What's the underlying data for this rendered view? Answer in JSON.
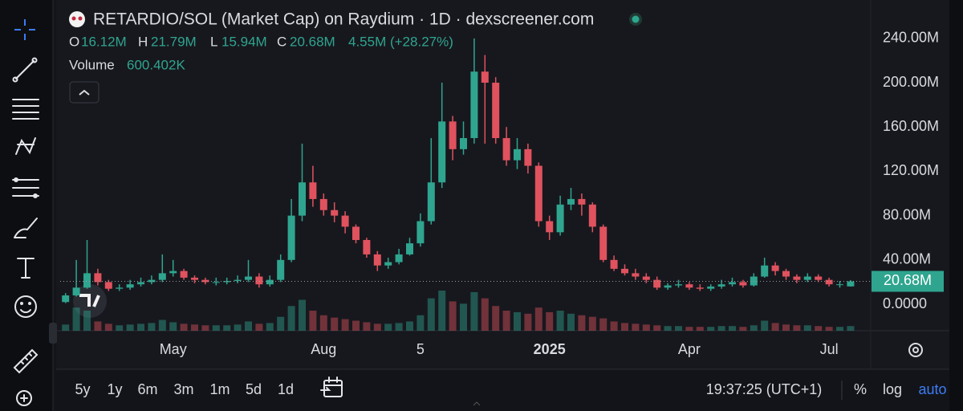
{
  "chart_data": {
    "type": "candlestick",
    "title": "RETARDIO/SOL (Market Cap) on Raydium · 1D · dexscreener.com",
    "legend": {
      "labels": [
        "O",
        "H",
        "L",
        "C"
      ],
      "values": [
        "16.12M",
        "21.79M",
        "15.94M",
        "20.68M"
      ],
      "change": "4.55M (+28.27%)"
    },
    "last_price_label": "20.68M",
    "categories": [
      null,
      null,
      null,
      null,
      null,
      null,
      null,
      null,
      null,
      null,
      "May",
      null,
      null,
      null,
      null,
      null,
      null,
      null,
      null,
      null,
      null,
      null,
      null,
      null,
      "Aug",
      null,
      null,
      null,
      null,
      null,
      null,
      null,
      null,
      "5",
      null,
      null,
      null,
      null,
      null,
      null,
      null,
      null,
      null,
      null,
      null,
      "2025",
      null,
      null,
      null,
      null,
      null,
      null,
      null,
      null,
      null,
      null,
      null,
      null,
      "Apr",
      null,
      null,
      null,
      null,
      null,
      null,
      null,
      null,
      null,
      null,
      null,
      null,
      "Jul",
      null,
      null
    ],
    "open": [
      2,
      8,
      15,
      28,
      20,
      14,
      15,
      18,
      20,
      22,
      28,
      30,
      24,
      22,
      20,
      20,
      21,
      22,
      25,
      18,
      22,
      40,
      80,
      110,
      95,
      85,
      80,
      70,
      58,
      45,
      35,
      38,
      45,
      55,
      75,
      110,
      165,
      140,
      150,
      210,
      200,
      150,
      130,
      140,
      125,
      75,
      65,
      90,
      95,
      90,
      70,
      40,
      32,
      28,
      25,
      22,
      15,
      17,
      18,
      15,
      14,
      16,
      18,
      20,
      17,
      25,
      35,
      30,
      25,
      22,
      25,
      22,
      18,
      16.12
    ],
    "high": [
      10,
      40,
      58,
      32,
      22,
      18,
      22,
      24,
      26,
      45,
      40,
      32,
      26,
      24,
      24,
      24,
      26,
      40,
      28,
      26,
      45,
      95,
      145,
      125,
      100,
      92,
      84,
      72,
      60,
      48,
      42,
      50,
      60,
      82,
      150,
      200,
      170,
      165,
      240,
      225,
      205,
      160,
      150,
      145,
      128,
      80,
      98,
      105,
      100,
      92,
      72,
      44,
      36,
      32,
      28,
      25,
      19,
      22,
      20,
      18,
      18,
      22,
      24,
      22,
      28,
      42,
      38,
      32,
      27,
      28,
      27,
      24,
      21,
      21.79
    ],
    "low": [
      1,
      7,
      14,
      17,
      12,
      12,
      13,
      16,
      18,
      20,
      25,
      22,
      19,
      18,
      17,
      18,
      19,
      20,
      15,
      16,
      20,
      38,
      75,
      88,
      80,
      74,
      64,
      55,
      42,
      30,
      32,
      36,
      44,
      52,
      72,
      105,
      130,
      135,
      145,
      145,
      145,
      125,
      122,
      118,
      70,
      58,
      62,
      85,
      80,
      65,
      38,
      30,
      26,
      22,
      19,
      13,
      13,
      15,
      13,
      12,
      12,
      14,
      16,
      15,
      16,
      24,
      26,
      22,
      19,
      20,
      20,
      16,
      15,
      15.94
    ],
    "close": [
      8,
      15,
      28,
      20,
      14,
      15,
      18,
      20,
      22,
      28,
      30,
      24,
      22,
      20,
      20,
      21,
      22,
      25,
      18,
      22,
      40,
      80,
      110,
      95,
      85,
      80,
      70,
      58,
      45,
      35,
      38,
      45,
      55,
      75,
      110,
      165,
      140,
      150,
      210,
      200,
      150,
      130,
      140,
      125,
      75,
      65,
      90,
      95,
      90,
      70,
      40,
      32,
      28,
      25,
      22,
      15,
      17,
      18,
      15,
      14,
      16,
      18,
      20,
      17,
      25,
      35,
      30,
      25,
      22,
      25,
      22,
      18,
      18,
      20.68
    ],
    "up_color": "#2fa58f",
    "down_color": "#e0525e",
    "volume": {
      "name": "Volume",
      "values": [
        800,
        3000,
        2600,
        1200,
        900,
        700,
        800,
        900,
        1000,
        1400,
        1100,
        900,
        800,
        700,
        700,
        700,
        800,
        1200,
        900,
        1000,
        1800,
        3200,
        4000,
        2600,
        2000,
        1700,
        1500,
        1300,
        1100,
        900,
        900,
        1000,
        1200,
        2000,
        4200,
        5200,
        3800,
        3500,
        5000,
        4200,
        3200,
        2600,
        2400,
        2200,
        3000,
        2400,
        2600,
        2200,
        2000,
        1800,
        1600,
        1200,
        1000,
        900,
        800,
        700,
        600,
        600,
        500,
        500,
        500,
        600,
        600,
        500,
        700,
        1300,
        1000,
        800,
        700,
        700,
        600,
        500,
        500,
        600.402
      ],
      "value_labels": [
        null,
        null,
        null,
        null,
        null,
        null,
        null,
        null,
        null,
        null,
        null,
        null,
        null,
        null,
        null,
        null,
        null,
        null,
        null,
        null,
        null,
        null,
        null,
        null,
        null,
        null,
        null,
        null,
        null,
        null,
        null,
        null,
        null,
        null,
        null,
        null,
        null,
        null,
        null,
        null,
        null,
        null,
        null,
        null,
        null,
        null,
        null,
        null,
        null,
        null,
        null,
        null,
        null,
        null,
        null,
        null,
        null,
        null,
        null,
        null,
        null,
        null,
        null,
        null,
        null,
        null,
        null,
        null,
        null,
        null,
        null,
        null,
        null,
        "600.402K"
      ]
    },
    "ylim": [
      -23.9,
      267.4
    ],
    "yticks": [
      {
        "value": 0,
        "label": "0.0000"
      },
      {
        "value": 40,
        "label": "40.00M"
      },
      {
        "value": 80,
        "label": "80.00M"
      },
      {
        "value": 120,
        "label": "120.00M"
      },
      {
        "value": 160,
        "label": "160.00M"
      },
      {
        "value": 200,
        "label": "200.00M"
      },
      {
        "value": 240,
        "label": "240.00M"
      }
    ],
    "grid": false,
    "ranges": [
      "5y",
      "1y",
      "6m",
      "3m",
      "1m",
      "5d",
      "1d"
    ],
    "clock": "19:37:25 (UTC+1)",
    "scale_options": [
      "%",
      "log",
      "auto"
    ]
  }
}
